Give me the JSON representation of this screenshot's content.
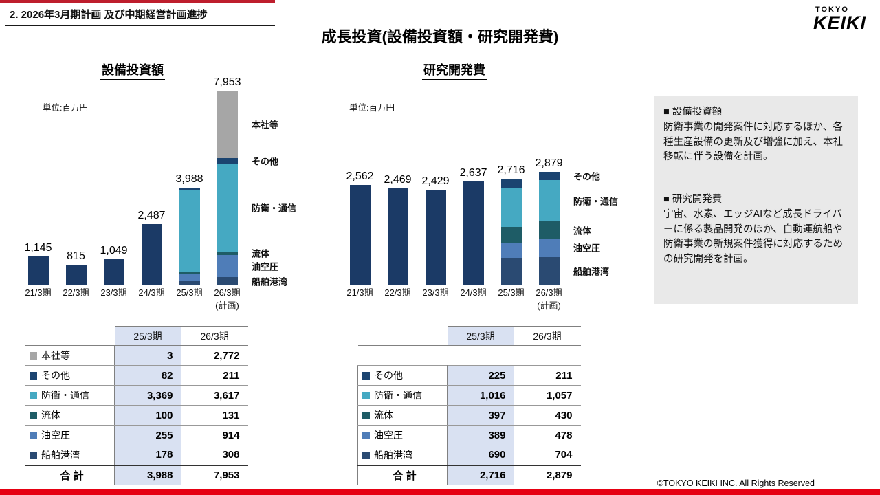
{
  "header": {
    "section": "2. 2026年3月期計画 及び中期経営計画進捗",
    "title": "成長投資(設備投資額・研究開発費)",
    "logo_top": "TOKYO",
    "logo_main": "KEIKI"
  },
  "colors": {
    "accent_red": "#BE1E2D",
    "bottom_bar_red": "#E60012",
    "table_highlight": "#D9E1F2",
    "notes_bg": "#E9E9E9",
    "bar_navy": "#1B3A66"
  },
  "chart_data": [
    {
      "type": "bar",
      "title": "設備投資額",
      "unit_label": "単位:百万円",
      "categories": [
        "21/3期",
        "22/3期",
        "23/3期",
        "24/3期",
        "25/3期",
        "26/3期"
      ],
      "last_category_note": "(計画)",
      "totals": [
        1145,
        815,
        1049,
        2487,
        3988,
        7953
      ],
      "total_labels": [
        "1,145",
        "815",
        "1,049",
        "2,487",
        "3,988",
        "7,953"
      ],
      "ylim": [
        0,
        8000
      ],
      "bar_color": "#1B3A66",
      "stacked_indices": [
        4,
        5
      ],
      "segments": [
        {
          "name": "船舶港湾",
          "color": "#2A4A72",
          "values": [
            178,
            308
          ]
        },
        {
          "name": "油空圧",
          "color": "#4F7DB8",
          "values": [
            255,
            914
          ]
        },
        {
          "name": "流体",
          "color": "#1E5C66",
          "values": [
            100,
            131
          ]
        },
        {
          "name": "防衛・通信",
          "color": "#45A9C2",
          "values": [
            3369,
            3617
          ]
        },
        {
          "name": "その他",
          "color": "#1B4470",
          "values": [
            82,
            211
          ]
        },
        {
          "name": "本社等",
          "color": "#A6A6A6",
          "values": [
            3,
            2772
          ]
        }
      ],
      "side_labels": [
        "本社等",
        "その他",
        "防衛・通信",
        "流体",
        "油空圧",
        "船舶港湾"
      ]
    },
    {
      "type": "bar",
      "title": "研究開発費",
      "unit_label": "単位:百万円",
      "categories": [
        "21/3期",
        "22/3期",
        "23/3期",
        "24/3期",
        "25/3期",
        "26/3期"
      ],
      "last_category_note": "(計画)",
      "totals": [
        2562,
        2469,
        2429,
        2637,
        2716,
        2879
      ],
      "total_labels": [
        "2,562",
        "2,469",
        "2,429",
        "2,637",
        "2,716",
        "2,879"
      ],
      "ylim": [
        0,
        5000
      ],
      "bar_color": "#1B3A66",
      "stacked_indices": [
        4,
        5
      ],
      "segments": [
        {
          "name": "船舶港湾",
          "color": "#2A4A72",
          "values": [
            690,
            704
          ]
        },
        {
          "name": "油空圧",
          "color": "#4F7DB8",
          "values": [
            389,
            478
          ]
        },
        {
          "name": "流体",
          "color": "#1E5C66",
          "values": [
            397,
            430
          ]
        },
        {
          "name": "防衛・通信",
          "color": "#45A9C2",
          "values": [
            1016,
            1057
          ]
        },
        {
          "name": "その他",
          "color": "#1B4470",
          "values": [
            225,
            211
          ]
        }
      ],
      "side_labels": [
        "その他",
        "防衛・通信",
        "流体",
        "油空圧",
        "船舶港湾"
      ]
    }
  ],
  "tables": {
    "capex": {
      "col_headers": [
        "25/3期",
        "26/3期"
      ],
      "rows": [
        {
          "label": "本社等",
          "color": "#A6A6A6",
          "values": [
            "3",
            "2,772"
          ]
        },
        {
          "label": "その他",
          "color": "#1B4470",
          "values": [
            "82",
            "211"
          ]
        },
        {
          "label": "防衛・通信",
          "color": "#45A9C2",
          "values": [
            "3,369",
            "3,617"
          ]
        },
        {
          "label": "流体",
          "color": "#1E5C66",
          "values": [
            "100",
            "131"
          ]
        },
        {
          "label": "油空圧",
          "color": "#4F7DB8",
          "values": [
            "255",
            "914"
          ]
        },
        {
          "label": "船舶港湾",
          "color": "#2A4A72",
          "values": [
            "178",
            "308"
          ]
        }
      ],
      "total": {
        "label": "合 計",
        "values": [
          "3,988",
          "7,953"
        ]
      },
      "spacer": false
    },
    "rnd": {
      "col_headers": [
        "25/3期",
        "26/3期"
      ],
      "rows": [
        {
          "label": "その他",
          "color": "#1B4470",
          "values": [
            "225",
            "211"
          ]
        },
        {
          "label": "防衛・通信",
          "color": "#45A9C2",
          "values": [
            "1,016",
            "1,057"
          ]
        },
        {
          "label": "流体",
          "color": "#1E5C66",
          "values": [
            "397",
            "430"
          ]
        },
        {
          "label": "油空圧",
          "color": "#4F7DB8",
          "values": [
            "389",
            "478"
          ]
        },
        {
          "label": "船舶港湾",
          "color": "#2A4A72",
          "values": [
            "690",
            "704"
          ]
        }
      ],
      "total": {
        "label": "合 計",
        "values": [
          "2,716",
          "2,879"
        ]
      },
      "spacer": true
    }
  },
  "notes": {
    "capex_heading": "■ 設備投資額",
    "capex_body": "防衛事業の開発案件に対応するほか、各種生産設備の更新及び増強に加え、本社移転に伴う設備を計画。",
    "rnd_heading": "■ 研究開発費",
    "rnd_body": "宇宙、水素、エッジAIなど成長ドライバーに係る製品開発のほか、自動運航船や防衛事業の新規案件獲得に対応するための研究開発を計画。"
  },
  "footer": {
    "copyright": "©TOKYO KEIKI INC. All Rights Reserved"
  }
}
